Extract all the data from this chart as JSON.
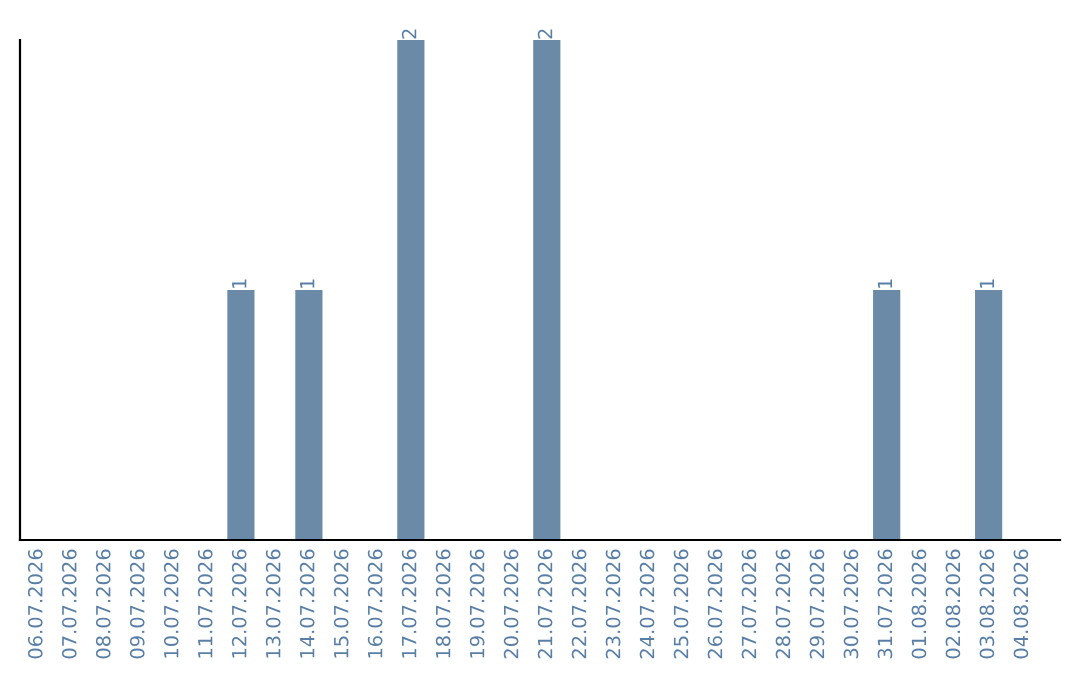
{
  "chart_data": {
    "type": "bar",
    "categories": [
      "06.07.2026",
      "07.07.2026",
      "08.07.2026",
      "09.07.2026",
      "10.07.2026",
      "11.07.2026",
      "12.07.2026",
      "13.07.2026",
      "14.07.2026",
      "15.07.2026",
      "16.07.2026",
      "17.07.2026",
      "18.07.2026",
      "19.07.2026",
      "20.07.2026",
      "21.07.2026",
      "22.07.2026",
      "23.07.2026",
      "24.07.2026",
      "25.07.2026",
      "26.07.2026",
      "27.07.2026",
      "28.07.2026",
      "29.07.2026",
      "30.07.2026",
      "31.07.2026",
      "01.08.2026",
      "02.08.2026",
      "03.08.2026",
      "04.08.2026"
    ],
    "values": [
      0,
      0,
      0,
      0,
      0,
      0,
      1,
      0,
      1,
      0,
      0,
      2,
      0,
      0,
      0,
      2,
      0,
      0,
      0,
      0,
      0,
      0,
      0,
      0,
      0,
      1,
      0,
      0,
      1,
      0
    ],
    "value_labels": [
      null,
      null,
      null,
      null,
      null,
      null,
      "1",
      null,
      "1",
      null,
      null,
      "2",
      null,
      null,
      null,
      "2",
      null,
      null,
      null,
      null,
      null,
      null,
      null,
      null,
      null,
      "1",
      null,
      null,
      "1",
      null
    ],
    "color": "#6a8aa8",
    "tick_labels": "x"
  }
}
